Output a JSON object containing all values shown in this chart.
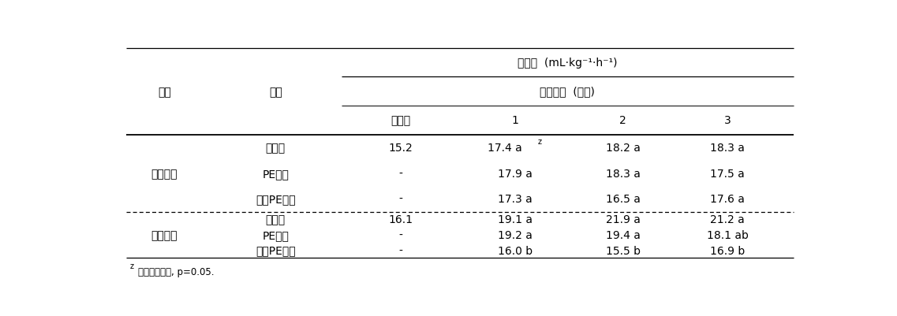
{
  "title_main": "호흡량  (mL·kg⁻¹·h⁻¹)",
  "title_sub": "저장기간  (개월)",
  "col_sub_headers": [
    "수확시",
    "1",
    "2",
    "3"
  ],
  "variety_label": "품종",
  "treatment_label": "처리",
  "group1_label": "상주둥시",
  "group2_label": "도근조생",
  "rows": [
    {
      "treatment": "무처리",
      "harvest": "15.2",
      "m1": "17.4 a",
      "m1z": true,
      "m2": "18.2 a",
      "m3": "18.3 a"
    },
    {
      "treatment": "PE필름",
      "harvest": "-",
      "m1": "17.9 a",
      "m1z": false,
      "m2": "18.3 a",
      "m3": "17.5 a"
    },
    {
      "treatment": "천공PE필름",
      "harvest": "-",
      "m1": "17.3 a",
      "m1z": false,
      "m2": "16.5 a",
      "m3": "17.6 a"
    },
    {
      "treatment": "무처리",
      "harvest": "16.1",
      "m1": "19.1 a",
      "m1z": false,
      "m2": "21.9 a",
      "m3": "21.2 a"
    },
    {
      "treatment": "PE필름",
      "harvest": "-",
      "m1": "19.2 a",
      "m1z": false,
      "m2": "19.4 a",
      "m3": "18.1 ab"
    },
    {
      "treatment": "천공PE필름",
      "harvest": "-",
      "m1": "16.0 b",
      "m1z": false,
      "m2": "15.5 b",
      "m3": "16.9 b"
    }
  ],
  "footnote": "ᶤ던컨다중검정, p=0.05."
}
